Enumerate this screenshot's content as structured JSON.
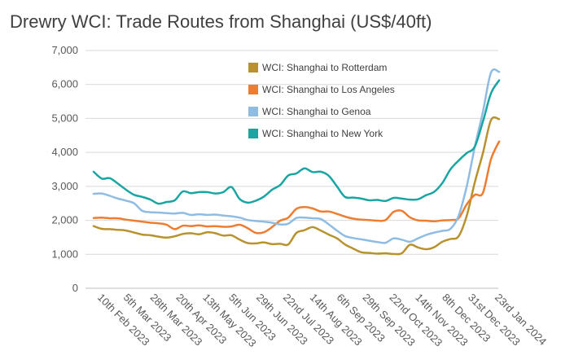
{
  "chart_data": {
    "type": "line",
    "title": "Drewry WCI: Trade Routes from Shanghai (US$/40ft)",
    "xlabel": "",
    "ylabel": "",
    "ylim": [
      0,
      7000
    ],
    "yticks": [
      0,
      1000,
      2000,
      3000,
      4000,
      5000,
      6000,
      7000
    ],
    "ytick_labels": [
      "0",
      "1,000",
      "2,000",
      "3,000",
      "4,000",
      "5,000",
      "6,000",
      "7,000"
    ],
    "x_tick_labels": [
      "10th Feb 2023",
      "5th Mar 2023",
      "28th Mar 2023",
      "20th Apr 2023",
      "13th May 2023",
      "5th Jun 2023",
      "29th Jun 2023",
      "22nd Jul 2023",
      "14th Aug 2023",
      "6th Sep 2023",
      "29th Sep 2023",
      "22nd Oct 2023",
      "14th Nov 2023",
      "8th Dec 2023",
      "31st Dec 2023",
      "23rd Jan 2024"
    ],
    "x_tick_positions": [
      0.4,
      3.6,
      6.9,
      10.1,
      13.4,
      16.6,
      20.0,
      23.3,
      26.6,
      29.9,
      33.1,
      36.4,
      39.6,
      42.9,
      46.1,
      49.4
    ],
    "x_range": [
      -1,
      49.9
    ],
    "grid": "horizontal",
    "legend_position": "top-center",
    "series": [
      {
        "name": "WCI: Shanghai to Rotterdam",
        "color": "#b8922e",
        "values": [
          1830,
          1750,
          1740,
          1720,
          1700,
          1640,
          1580,
          1560,
          1520,
          1490,
          1530,
          1600,
          1620,
          1590,
          1650,
          1620,
          1550,
          1560,
          1430,
          1330,
          1320,
          1350,
          1300,
          1310,
          1290,
          1630,
          1710,
          1800,
          1700,
          1580,
          1470,
          1290,
          1170,
          1060,
          1040,
          1020,
          1030,
          1010,
          1030,
          1280,
          1200,
          1150,
          1210,
          1370,
          1450,
          1530,
          2130,
          3120,
          3980,
          4950,
          4980
        ]
      },
      {
        "name": "WCI: Shanghai to Los Angeles",
        "color": "#ed7d31",
        "values": [
          2070,
          2080,
          2060,
          2060,
          2020,
          1990,
          1960,
          1930,
          1910,
          1870,
          1740,
          1840,
          1830,
          1850,
          1820,
          1830,
          1810,
          1820,
          1870,
          1770,
          1630,
          1650,
          1800,
          1990,
          2080,
          2340,
          2390,
          2350,
          2260,
          2260,
          2190,
          2110,
          2050,
          2020,
          2010,
          1990,
          2010,
          2250,
          2280,
          2090,
          2000,
          1990,
          1970,
          2000,
          2010,
          2060,
          2470,
          2750,
          2810,
          3800,
          4320
        ]
      },
      {
        "name": "WCI: Shanghai to Genoa",
        "color": "#8ebce2",
        "values": [
          2780,
          2790,
          2720,
          2640,
          2580,
          2500,
          2280,
          2240,
          2230,
          2210,
          2200,
          2220,
          2160,
          2180,
          2160,
          2170,
          2140,
          2120,
          2080,
          2010,
          1980,
          1960,
          1930,
          1880,
          1900,
          2070,
          2080,
          2060,
          2040,
          1880,
          1700,
          1540,
          1480,
          1440,
          1400,
          1360,
          1340,
          1470,
          1430,
          1370,
          1470,
          1570,
          1640,
          1690,
          1750,
          2130,
          3000,
          4160,
          5200,
          6350,
          6370
        ]
      },
      {
        "name": "WCI: Shanghai to New York",
        "color": "#1aa5a3",
        "values": [
          3430,
          3230,
          3240,
          3080,
          2900,
          2750,
          2690,
          2610,
          2490,
          2540,
          2590,
          2850,
          2800,
          2830,
          2830,
          2790,
          2830,
          2980,
          2630,
          2520,
          2580,
          2700,
          2900,
          3040,
          3320,
          3380,
          3530,
          3420,
          3430,
          3310,
          3000,
          2690,
          2670,
          2640,
          2590,
          2600,
          2570,
          2660,
          2640,
          2610,
          2620,
          2740,
          2840,
          3100,
          3500,
          3760,
          3980,
          4170,
          4910,
          5740,
          6120
        ]
      }
    ]
  }
}
